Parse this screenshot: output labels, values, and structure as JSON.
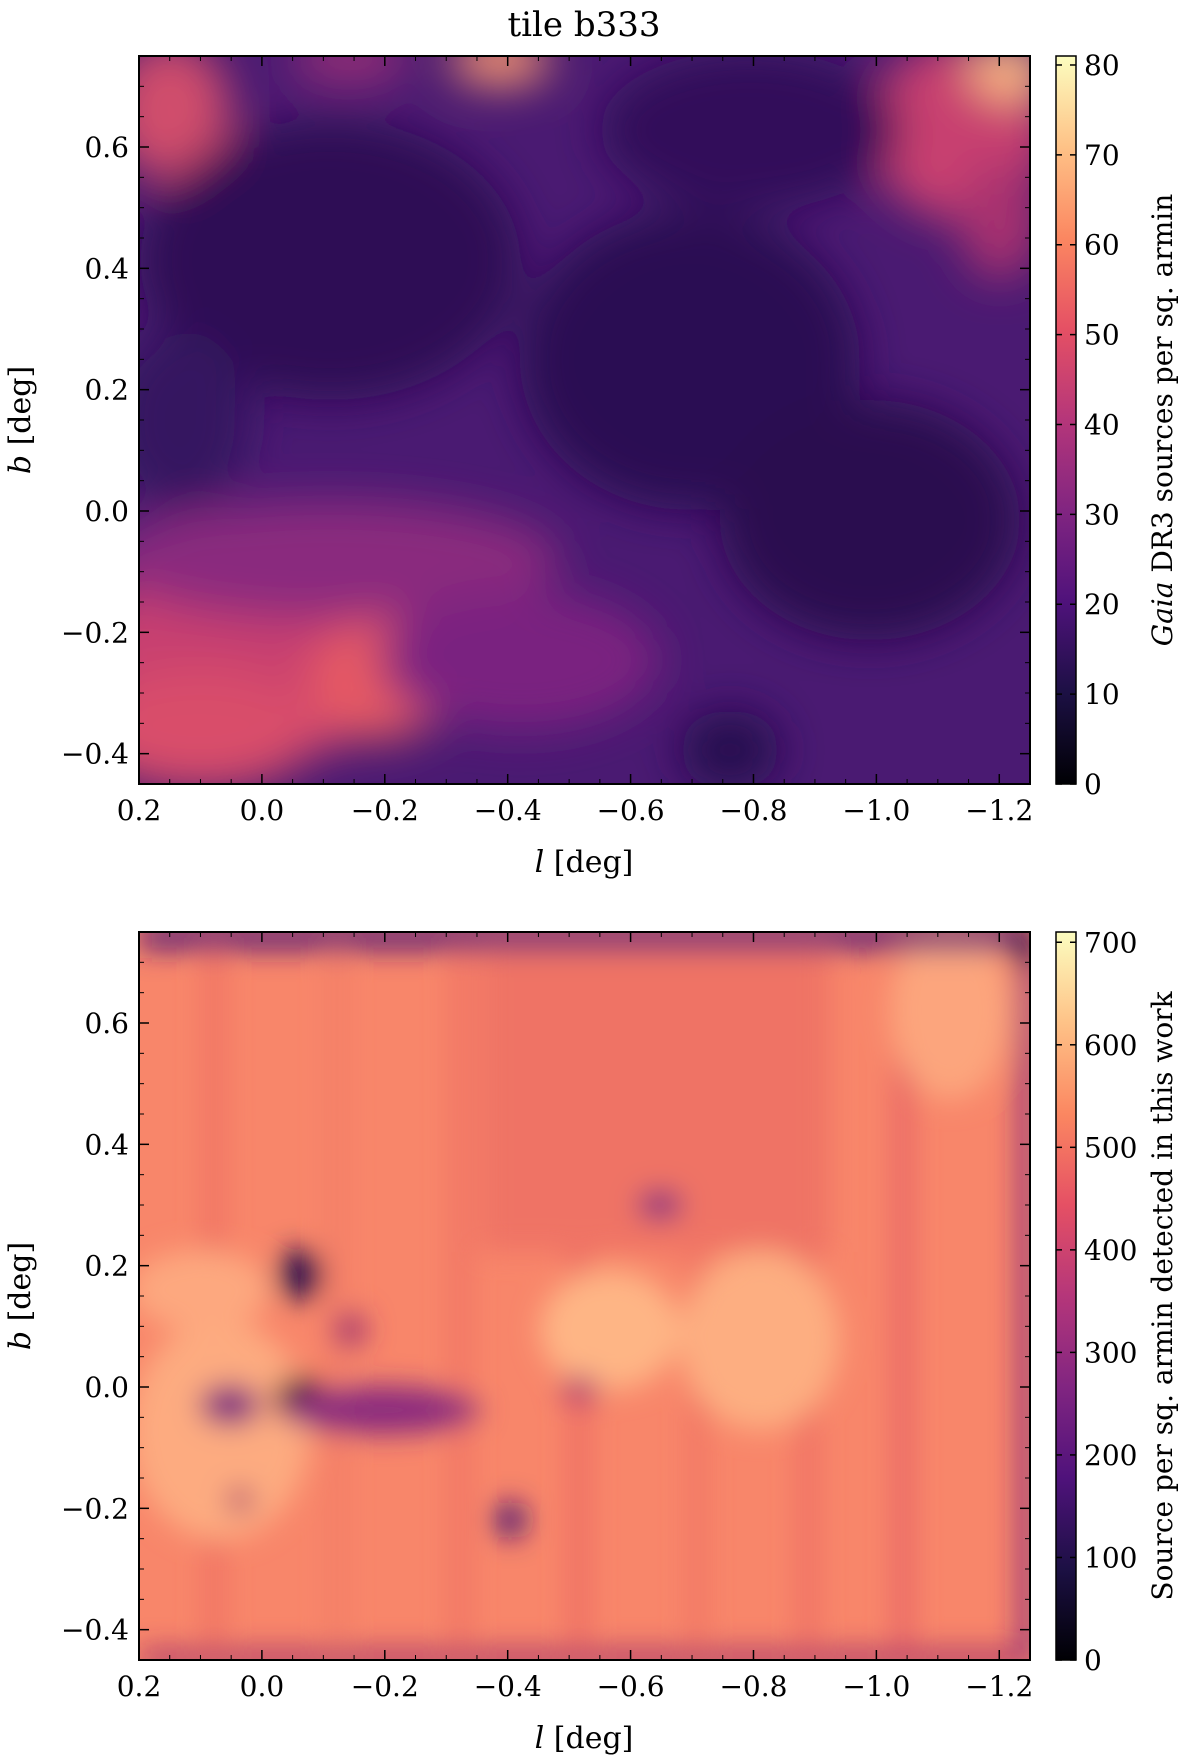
{
  "chart_data": [
    {
      "type": "heatmap",
      "title": "tile b333",
      "xlabel_italic": "l",
      "xlabel_rest": " [deg]",
      "ylabel_italic": "b",
      "ylabel_rest": " [deg]",
      "xlim": [
        0.2,
        -1.25
      ],
      "ylim": [
        -0.45,
        0.75
      ],
      "xticks": [
        0.2,
        0.0,
        -0.2,
        -0.4,
        -0.6,
        -0.8,
        -1.0,
        -1.2
      ],
      "xtick_labels": [
        "0.2",
        "0.0",
        "−0.2",
        "−0.4",
        "−0.6",
        "−0.8",
        "−1.0",
        "−1.2"
      ],
      "yticks": [
        -0.4,
        -0.2,
        0.0,
        0.2,
        0.4,
        0.6
      ],
      "ytick_labels": [
        "−0.4",
        "−0.2",
        "0.0",
        "0.2",
        "0.4",
        "0.6"
      ],
      "colormap": "magma",
      "clim": [
        0,
        81
      ],
      "cbar_ticks": [
        0,
        10,
        20,
        30,
        40,
        50,
        60,
        70,
        80
      ],
      "cbar_label_italic": "Gaia",
      "cbar_label_rest": " DR3 sources per sq. armin",
      "features": [
        {
          "l": -0.05,
          "b": -0.28,
          "value": 52
        },
        {
          "l": -0.25,
          "b": -0.33,
          "value": 58
        },
        {
          "l": 0.15,
          "b": 0.68,
          "value": 55
        },
        {
          "l": -0.36,
          "b": 0.73,
          "value": 72
        },
        {
          "l": -1.22,
          "b": 0.72,
          "value": 72
        },
        {
          "l": -1.1,
          "b": 0.6,
          "value": 52
        },
        {
          "l": -0.15,
          "b": 0.35,
          "value": 14
        },
        {
          "l": -0.72,
          "b": 0.2,
          "value": 12
        },
        {
          "l": -0.9,
          "b": -0.1,
          "value": 14
        },
        {
          "l": -0.8,
          "b": -0.4,
          "value": 16
        }
      ]
    },
    {
      "type": "heatmap",
      "xlabel_italic": "l",
      "xlabel_rest": " [deg]",
      "ylabel_italic": "b",
      "ylabel_rest": " [deg]",
      "xlim": [
        0.2,
        -1.25
      ],
      "ylim": [
        -0.45,
        0.75
      ],
      "xticks": [
        0.2,
        0.0,
        -0.2,
        -0.4,
        -0.6,
        -0.8,
        -1.0,
        -1.2
      ],
      "xtick_labels": [
        "0.2",
        "0.0",
        "−0.2",
        "−0.4",
        "−0.6",
        "−0.8",
        "−1.0",
        "−1.2"
      ],
      "yticks": [
        -0.4,
        -0.2,
        0.0,
        0.2,
        0.4,
        0.6
      ],
      "ytick_labels": [
        "−0.4",
        "−0.2",
        "0.0",
        "0.2",
        "0.4",
        "0.6"
      ],
      "colormap": "magma",
      "clim": [
        0,
        710
      ],
      "cbar_ticks": [
        0,
        100,
        200,
        300,
        400,
        500,
        600,
        700
      ],
      "cbar_label": "Source per sq. armin detected in this work",
      "features": [
        {
          "l": -0.06,
          "b": 0.17,
          "value": 100
        },
        {
          "l": -0.06,
          "b": -0.03,
          "value": 60
        },
        {
          "l": -0.17,
          "b": -0.02,
          "value": 230
        },
        {
          "l": -0.4,
          "b": -0.22,
          "value": 180
        },
        {
          "l": -0.65,
          "b": 0.29,
          "value": 260
        },
        {
          "l": -0.55,
          "b": -0.02,
          "value": 620
        },
        {
          "l": -0.8,
          "b": -0.05,
          "value": 640
        },
        {
          "l": 0.1,
          "b": -0.2,
          "value": 640
        },
        {
          "l": -1.1,
          "b": 0.55,
          "value": 620
        }
      ]
    }
  ]
}
